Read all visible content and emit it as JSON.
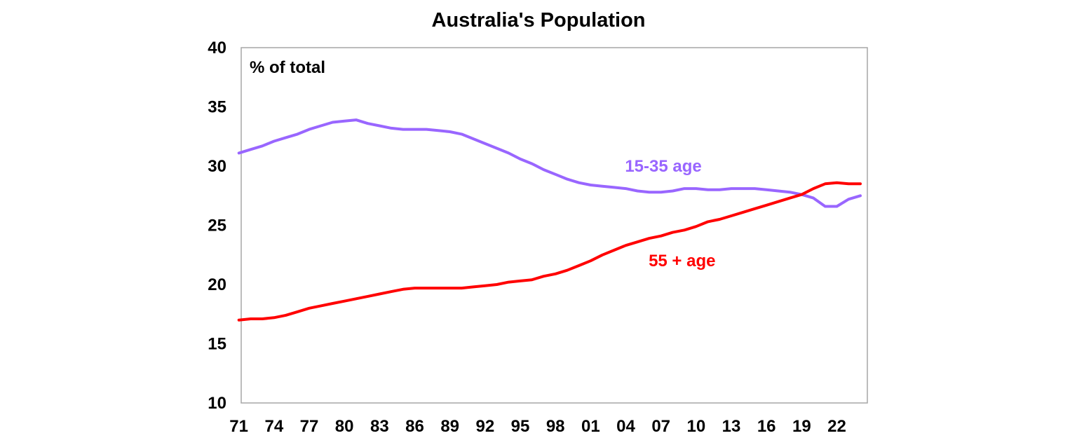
{
  "chart_data": {
    "type": "line",
    "title": "Australia's Population",
    "ylabel": "% of total",
    "xlabel": "",
    "ylim": [
      10,
      40
    ],
    "xlim": [
      1971,
      2024
    ],
    "yticks": [
      10,
      15,
      20,
      25,
      30,
      35,
      40
    ],
    "xticks": [
      {
        "value": 1971,
        "label": "71"
      },
      {
        "value": 1974,
        "label": "74"
      },
      {
        "value": 1977,
        "label": "77"
      },
      {
        "value": 1980,
        "label": "80"
      },
      {
        "value": 1983,
        "label": "83"
      },
      {
        "value": 1986,
        "label": "86"
      },
      {
        "value": 1989,
        "label": "89"
      },
      {
        "value": 1992,
        "label": "92"
      },
      {
        "value": 1995,
        "label": "95"
      },
      {
        "value": 1998,
        "label": "98"
      },
      {
        "value": 2001,
        "label": "01"
      },
      {
        "value": 2004,
        "label": "04"
      },
      {
        "value": 2007,
        "label": "07"
      },
      {
        "value": 2010,
        "label": "10"
      },
      {
        "value": 2013,
        "label": "13"
      },
      {
        "value": 2016,
        "label": "16"
      },
      {
        "value": 2019,
        "label": "19"
      },
      {
        "value": 2022,
        "label": "22"
      }
    ],
    "grid": false,
    "legend": "none",
    "x": [
      1971,
      1972,
      1973,
      1974,
      1975,
      1976,
      1977,
      1978,
      1979,
      1980,
      1981,
      1982,
      1983,
      1984,
      1985,
      1986,
      1987,
      1988,
      1989,
      1990,
      1991,
      1992,
      1993,
      1994,
      1995,
      1996,
      1997,
      1998,
      1999,
      2000,
      2001,
      2002,
      2003,
      2004,
      2005,
      2006,
      2007,
      2008,
      2009,
      2010,
      2011,
      2012,
      2013,
      2014,
      2015,
      2016,
      2017,
      2018,
      2019,
      2020,
      2021,
      2022,
      2023,
      2024
    ],
    "series": [
      {
        "name": "15-35 age",
        "color": "#9966ff",
        "values": [
          31.1,
          31.4,
          31.7,
          32.1,
          32.4,
          32.7,
          33.1,
          33.4,
          33.7,
          33.8,
          33.9,
          33.6,
          33.4,
          33.2,
          33.1,
          33.1,
          33.1,
          33.0,
          32.9,
          32.7,
          32.3,
          31.9,
          31.5,
          31.1,
          30.6,
          30.2,
          29.7,
          29.3,
          28.9,
          28.6,
          28.4,
          28.3,
          28.2,
          28.1,
          27.9,
          27.8,
          27.8,
          27.9,
          28.1,
          28.1,
          28.0,
          28.0,
          28.1,
          28.1,
          28.1,
          28.0,
          27.9,
          27.8,
          27.6,
          27.3,
          26.6,
          26.6,
          27.2,
          27.5
        ]
      },
      {
        "name": "55 + age",
        "color": "#ff0000",
        "values": [
          17.0,
          17.1,
          17.1,
          17.2,
          17.4,
          17.7,
          18.0,
          18.2,
          18.4,
          18.6,
          18.8,
          19.0,
          19.2,
          19.4,
          19.6,
          19.7,
          19.7,
          19.7,
          19.7,
          19.7,
          19.8,
          19.9,
          20.0,
          20.2,
          20.3,
          20.4,
          20.7,
          20.9,
          21.2,
          21.6,
          22.0,
          22.5,
          22.9,
          23.3,
          23.6,
          23.9,
          24.1,
          24.4,
          24.6,
          24.9,
          25.3,
          25.5,
          25.8,
          26.1,
          26.4,
          26.7,
          27.0,
          27.3,
          27.6,
          28.1,
          28.5,
          28.6,
          28.5,
          28.5
        ]
      }
    ],
    "annotations": [
      {
        "text": "15-35 age",
        "x": 2007.2,
        "y": 30.0,
        "color": "#9966ff"
      },
      {
        "text": "55 + age",
        "x": 2008.8,
        "y": 22.0,
        "color": "#ff0000"
      }
    ]
  }
}
